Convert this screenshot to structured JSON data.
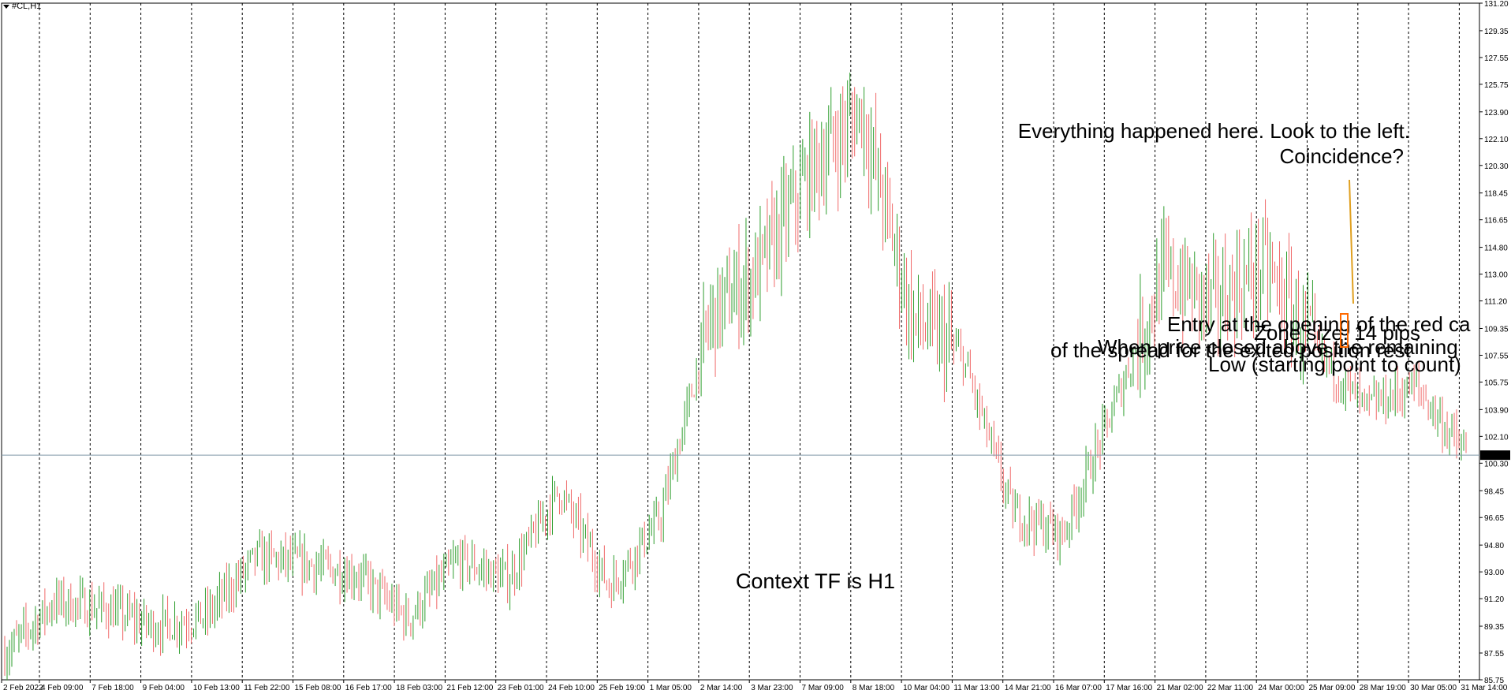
{
  "symbol": "#CL,H1",
  "colors": {
    "background": "#ffffff",
    "bull": "#2e9e2e",
    "bear": "#f06a6a",
    "grid": "#000000",
    "price_line": "#7f98a8",
    "trend": "#e0a020",
    "zone": "#ff6a00",
    "price_box_bg": "#000000",
    "price_box_fg": "#ffffff"
  },
  "current_price": "100.84",
  "price_axis": [
    "131.20",
    "129.35",
    "127.55",
    "125.75",
    "123.90",
    "122.10",
    "120.30",
    "118.45",
    "116.65",
    "114.80",
    "113.00",
    "111.20",
    "109.35",
    "107.55",
    "105.75",
    "103.90",
    "102.10",
    "100.30",
    "98.45",
    "96.65",
    "94.80",
    "93.00",
    "91.20",
    "89.35",
    "87.55",
    "85.75"
  ],
  "time_axis": [
    "2 Feb 2022",
    "4 Feb 09:00",
    "7 Feb 18:00",
    "9 Feb 04:00",
    "10 Feb 13:00",
    "11 Feb 22:00",
    "15 Feb 08:00",
    "16 Feb 17:00",
    "18 Feb 03:00",
    "21 Feb 12:00",
    "23 Feb 01:00",
    "24 Feb 10:00",
    "25 Feb 19:00",
    "1 Mar 05:00",
    "2 Mar 14:00",
    "3 Mar 23:00",
    "7 Mar 09:00",
    "8 Mar 18:00",
    "10 Mar 04:00",
    "11 Mar 13:00",
    "14 Mar 21:00",
    "16 Mar 07:00",
    "17 Mar 16:00",
    "21 Mar 02:00",
    "22 Mar 11:00",
    "24 Mar 00:00",
    "25 Mar 09:00",
    "28 Mar 19:00",
    "30 Mar 05:00",
    "31 Mar 14:00"
  ],
  "annotations": {
    "context": "Context TF is H1",
    "everything_1": "Everything happened here. Look to the left.",
    "everything_2": "Coincidence?",
    "entry": "Entry at the opening of the red ca",
    "zone": "Zone size: 14 pips",
    "overlap_1": "When price closed above the remaining",
    "overlap_2": "of the spread for the exited position rest",
    "low": "Low (starting point to count)"
  },
  "chart_data": {
    "type": "line",
    "title": "#CL,H1",
    "xlabel": "",
    "ylabel": "",
    "ylim": [
      85.75,
      131.2
    ],
    "grid": "vertical dashed",
    "x": [
      "2 Feb 2022",
      "4 Feb 09:00",
      "7 Feb 18:00",
      "9 Feb 04:00",
      "10 Feb 13:00",
      "11 Feb 22:00",
      "15 Feb 08:00",
      "16 Feb 17:00",
      "18 Feb 03:00",
      "21 Feb 12:00",
      "23 Feb 01:00",
      "24 Feb 10:00",
      "25 Feb 19:00",
      "1 Mar 05:00",
      "2 Mar 14:00",
      "3 Mar 23:00",
      "7 Mar 09:00",
      "8 Mar 18:00",
      "10 Mar 04:00",
      "11 Mar 13:00",
      "14 Mar 21:00",
      "16 Mar 07:00",
      "17 Mar 16:00",
      "21 Mar 02:00",
      "22 Mar 11:00",
      "24 Mar 00:00",
      "25 Mar 09:00",
      "28 Mar 19:00",
      "30 Mar 05:00",
      "31 Mar 14:00"
    ],
    "series": [
      {
        "values": [
          87.5,
          91.0,
          90.5,
          89.3,
          90.0,
          94.0,
          93.5,
          92.8,
          89.8,
          93.8,
          92.5,
          98.5,
          92.0,
          96.5,
          110.0,
          113.5,
          120.0,
          124.0,
          110.0,
          107.5,
          97.0,
          95.5,
          104.0,
          113.0,
          111.0,
          113.5,
          108.0,
          104.0,
          105.5,
          100.8
        ]
      }
    ]
  }
}
